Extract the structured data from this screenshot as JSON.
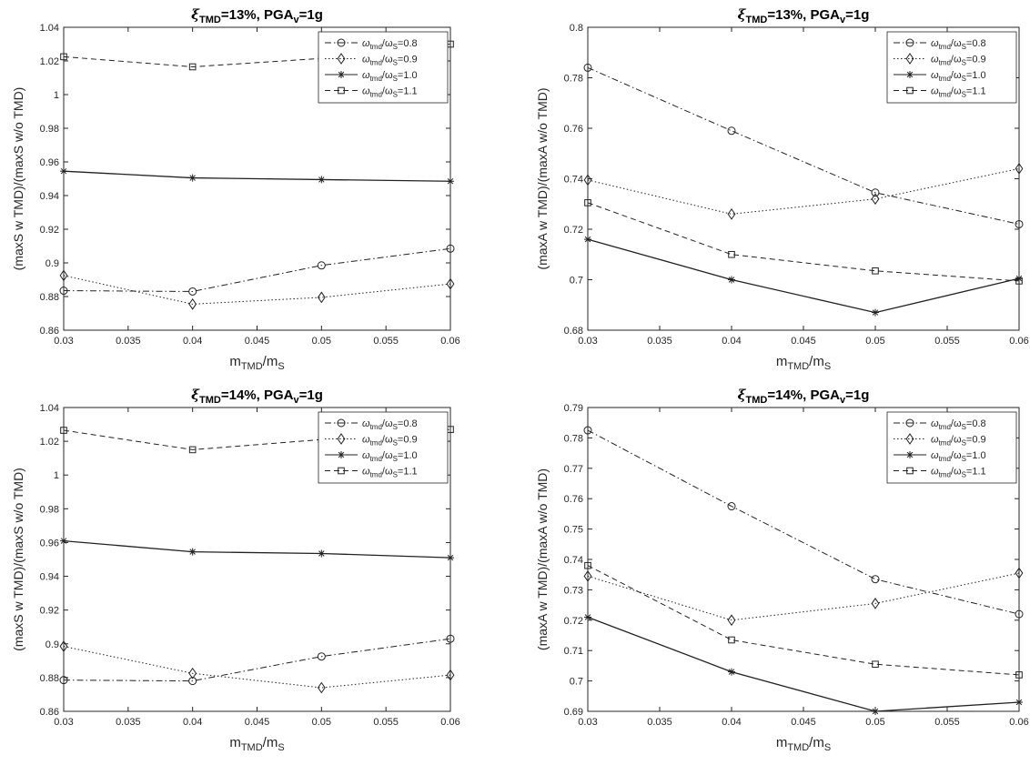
{
  "figure": {
    "legend_prefix": "ω",
    "legend_sub_a": "tmd",
    "legend_mid": "/ω",
    "legend_sub_b": "S",
    "xlabel_main": "m",
    "xlabel_sub1": "TMD",
    "xlabel_mid": "/m",
    "xlabel_sub2": "S"
  },
  "chart_data": [
    {
      "type": "line",
      "title_prefix": "ξ",
      "title_sub1": "TMD",
      "title_mid": "=13%, PGA",
      "title_sub2": "v",
      "title_end": "=1g",
      "ylabel": "(maxS w TMD)/(maxS w/o TMD)",
      "xlim": [
        0.03,
        0.06
      ],
      "ylim": [
        0.86,
        1.04
      ],
      "xticks": [
        "0.03",
        "0.035",
        "0.04",
        "0.045",
        "0.05",
        "0.055",
        "0.06"
      ],
      "yticks": [
        "0.86",
        "0.88",
        "0.9",
        "0.92",
        "0.94",
        "0.96",
        "0.98",
        "1",
        "1.02",
        "1.04"
      ],
      "x": [
        0.03,
        0.04,
        0.05,
        0.06
      ],
      "legend_position": "top-right",
      "series": [
        {
          "name": "=0.8",
          "values": [
            0.8835,
            0.883,
            0.8985,
            0.9085
          ],
          "marker": "circle",
          "style": "dashdot"
        },
        {
          "name": "=0.9",
          "values": [
            0.8925,
            0.8755,
            0.8795,
            0.8875
          ],
          "marker": "diamond",
          "style": "dotted"
        },
        {
          "name": "=1.0",
          "values": [
            0.9545,
            0.9505,
            0.9495,
            0.9485
          ],
          "marker": "star",
          "style": "solid"
        },
        {
          "name": "=1.1",
          "values": [
            1.0225,
            1.0165,
            1.0215,
            1.03
          ],
          "marker": "square",
          "style": "dashed"
        }
      ]
    },
    {
      "type": "line",
      "title_prefix": "ξ",
      "title_sub1": "TMD",
      "title_mid": "=13%, PGA",
      "title_sub2": "v",
      "title_end": "=1g",
      "ylabel": "(maxA w TMD)/(maxA w/o TMD)",
      "xlim": [
        0.03,
        0.06
      ],
      "ylim": [
        0.68,
        0.8
      ],
      "xticks": [
        "0.03",
        "0.035",
        "0.04",
        "0.045",
        "0.05",
        "0.055",
        "0.06"
      ],
      "yticks": [
        "0.68",
        "0.7",
        "0.72",
        "0.74",
        "0.76",
        "0.78",
        "0.8"
      ],
      "x": [
        0.03,
        0.04,
        0.05,
        0.06
      ],
      "legend_position": "top-right",
      "series": [
        {
          "name": "=0.8",
          "values": [
            0.784,
            0.759,
            0.7345,
            0.722
          ],
          "marker": "circle",
          "style": "dashdot"
        },
        {
          "name": "=0.9",
          "values": [
            0.7395,
            0.726,
            0.732,
            0.744
          ],
          "marker": "diamond",
          "style": "dotted"
        },
        {
          "name": "=1.0",
          "values": [
            0.716,
            0.7,
            0.687,
            0.7005
          ],
          "marker": "star",
          "style": "solid"
        },
        {
          "name": "=1.1",
          "values": [
            0.7305,
            0.71,
            0.7035,
            0.6995
          ],
          "marker": "square",
          "style": "dashed"
        }
      ]
    },
    {
      "type": "line",
      "title_prefix": "ξ",
      "title_sub1": "TMD",
      "title_mid": "=14%, PGA",
      "title_sub2": "v",
      "title_end": "=1g",
      "ylabel": "(maxS w TMD)/(maxS w/o TMD)",
      "xlim": [
        0.03,
        0.06
      ],
      "ylim": [
        0.86,
        1.04
      ],
      "xticks": [
        "0.03",
        "0.035",
        "0.04",
        "0.045",
        "0.05",
        "0.055",
        "0.06"
      ],
      "yticks": [
        "0.86",
        "0.88",
        "0.9",
        "0.92",
        "0.94",
        "0.96",
        "0.98",
        "1",
        "1.02",
        "1.04"
      ],
      "x": [
        0.03,
        0.04,
        0.05,
        0.06
      ],
      "legend_position": "top-right",
      "series": [
        {
          "name": "=0.8",
          "values": [
            0.8785,
            0.878,
            0.8925,
            0.903
          ],
          "marker": "circle",
          "style": "dashdot"
        },
        {
          "name": "=0.9",
          "values": [
            0.8985,
            0.8825,
            0.874,
            0.8815
          ],
          "marker": "diamond",
          "style": "dotted"
        },
        {
          "name": "=1.0",
          "values": [
            0.961,
            0.9545,
            0.9535,
            0.951
          ],
          "marker": "star",
          "style": "solid"
        },
        {
          "name": "=1.1",
          "values": [
            1.0265,
            1.015,
            1.021,
            1.027
          ],
          "marker": "square",
          "style": "dashed"
        }
      ]
    },
    {
      "type": "line",
      "title_prefix": "ξ",
      "title_sub1": "TMD",
      "title_mid": "=14%, PGA",
      "title_sub2": "v",
      "title_end": "=1g",
      "ylabel": "(maxA w TMD)/(maxA w/o TMD)",
      "xlim": [
        0.03,
        0.06
      ],
      "ylim": [
        0.69,
        0.79
      ],
      "xticks": [
        "0.03",
        "0.035",
        "0.04",
        "0.045",
        "0.05",
        "0.055",
        "0.06"
      ],
      "yticks": [
        "0.69",
        "0.7",
        "0.71",
        "0.72",
        "0.73",
        "0.74",
        "0.75",
        "0.76",
        "0.77",
        "0.78",
        "0.79"
      ],
      "x": [
        0.03,
        0.04,
        0.05,
        0.06
      ],
      "legend_position": "top-right",
      "series": [
        {
          "name": "=0.8",
          "values": [
            0.7825,
            0.7575,
            0.7335,
            0.722
          ],
          "marker": "circle",
          "style": "dashdot"
        },
        {
          "name": "=0.9",
          "values": [
            0.7345,
            0.72,
            0.7255,
            0.7355
          ],
          "marker": "diamond",
          "style": "dotted"
        },
        {
          "name": "=1.0",
          "values": [
            0.721,
            0.703,
            0.69,
            0.693
          ],
          "marker": "star",
          "style": "solid"
        },
        {
          "name": "=1.1",
          "values": [
            0.738,
            0.7135,
            0.7055,
            0.702
          ],
          "marker": "square",
          "style": "dashed"
        }
      ]
    }
  ]
}
